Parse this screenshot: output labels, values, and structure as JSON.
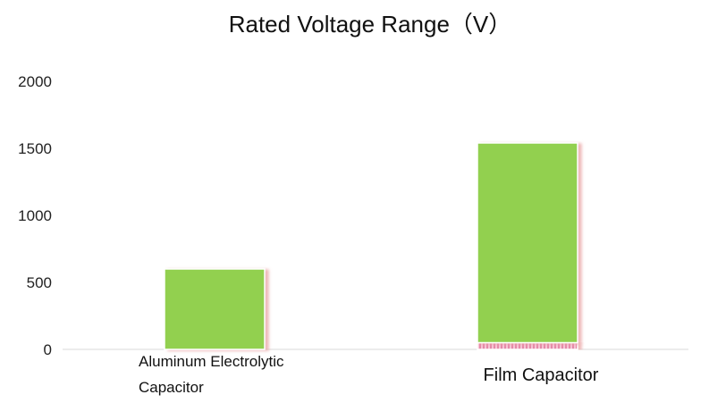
{
  "chart_data": {
    "type": "bar",
    "title": "Rated Voltage Range（V）",
    "categories": [
      "Aluminum Electrolytic Capacitor",
      "Film Capacitor"
    ],
    "category_lines": [
      [
        "Aluminum Electrolytic",
        "Capacitor"
      ],
      [
        "Film Capacitor"
      ]
    ],
    "series": [
      {
        "values": [
          0,
          50
        ],
        "color": "#f2a6bf",
        "pattern": "hatched"
      },
      {
        "values": [
          600,
          1490
        ],
        "color": "#92d050"
      }
    ],
    "ylim": [
      0,
      2000
    ],
    "yticks": [
      "0",
      "500",
      "1000",
      "1500",
      "2000"
    ],
    "xlabel": "",
    "ylabel": "",
    "grid": false,
    "legend": "none"
  }
}
